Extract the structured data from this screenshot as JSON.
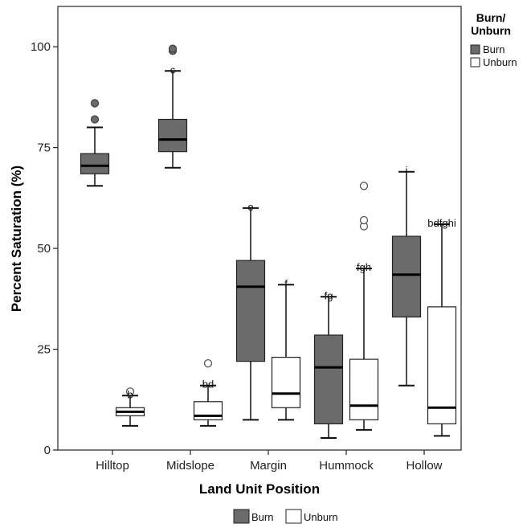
{
  "chart_data": {
    "type": "boxplot",
    "xlabel": "Land Unit Position",
    "ylabel": "Percent Saturation (%)",
    "ylim": [
      0,
      110
    ],
    "yticks": [
      0,
      25,
      50,
      75,
      100
    ],
    "categories": [
      "Hilltop",
      "Midslope",
      "Margin",
      "Hummock",
      "Hollow"
    ],
    "legend_title": "Burn/ Unburn",
    "series": [
      {
        "name": "Burn",
        "color": "#6b6b6b",
        "boxes": [
          {
            "category": "Hilltop",
            "whisker_low": 65.5,
            "q1": 68.5,
            "median": 70.5,
            "q3": 73.5,
            "whisker_high": 80,
            "outliers": [
              82,
              86
            ],
            "letter": ""
          },
          {
            "category": "Midslope",
            "whisker_low": 70,
            "q1": 74,
            "median": 77,
            "q3": 82,
            "whisker_high": 94,
            "outliers": [
              99,
              99.5
            ],
            "letter": "c"
          },
          {
            "category": "Margin",
            "whisker_low": 7.5,
            "q1": 22,
            "median": 40.5,
            "q3": 47,
            "whisker_high": 60,
            "outliers": [],
            "letter": "e"
          },
          {
            "category": "Hummock",
            "whisker_low": 3,
            "q1": 6.5,
            "median": 20.5,
            "q3": 28.5,
            "whisker_high": 38,
            "outliers": [],
            "letter": "fg"
          },
          {
            "category": "Hollow",
            "whisker_low": 16,
            "q1": 33,
            "median": 43.5,
            "q3": 53,
            "whisker_high": 69,
            "outliers": [],
            "letter": "i"
          }
        ]
      },
      {
        "name": "Unburn",
        "color": "#ffffff",
        "boxes": [
          {
            "category": "Hilltop",
            "whisker_low": 6,
            "q1": 8.5,
            "median": 9.5,
            "q3": 10.5,
            "whisker_high": 13.5,
            "outliers": [
              14.5
            ],
            "letter": "b"
          },
          {
            "category": "Midslope",
            "whisker_low": 6,
            "q1": 7.5,
            "median": 8.5,
            "q3": 12,
            "whisker_high": 16,
            "outliers": [
              21.5
            ],
            "letter": "bd"
          },
          {
            "category": "Margin",
            "whisker_low": 7.5,
            "q1": 10.5,
            "median": 14,
            "q3": 23,
            "whisker_high": 41,
            "outliers": [],
            "letter": "f"
          },
          {
            "category": "Hummock",
            "whisker_low": 5,
            "q1": 7.5,
            "median": 11,
            "q3": 22.5,
            "whisker_high": 45,
            "outliers": [
              55.5,
              57,
              65.5
            ],
            "letter": "fgh"
          },
          {
            "category": "Hollow",
            "whisker_low": 3.5,
            "q1": 6.5,
            "median": 10.5,
            "q3": 35.5,
            "whisker_high": 56,
            "outliers": [],
            "letter": "bdfghi"
          }
        ]
      }
    ],
    "bottom_legend": [
      "Burn",
      "Unburn"
    ]
  }
}
